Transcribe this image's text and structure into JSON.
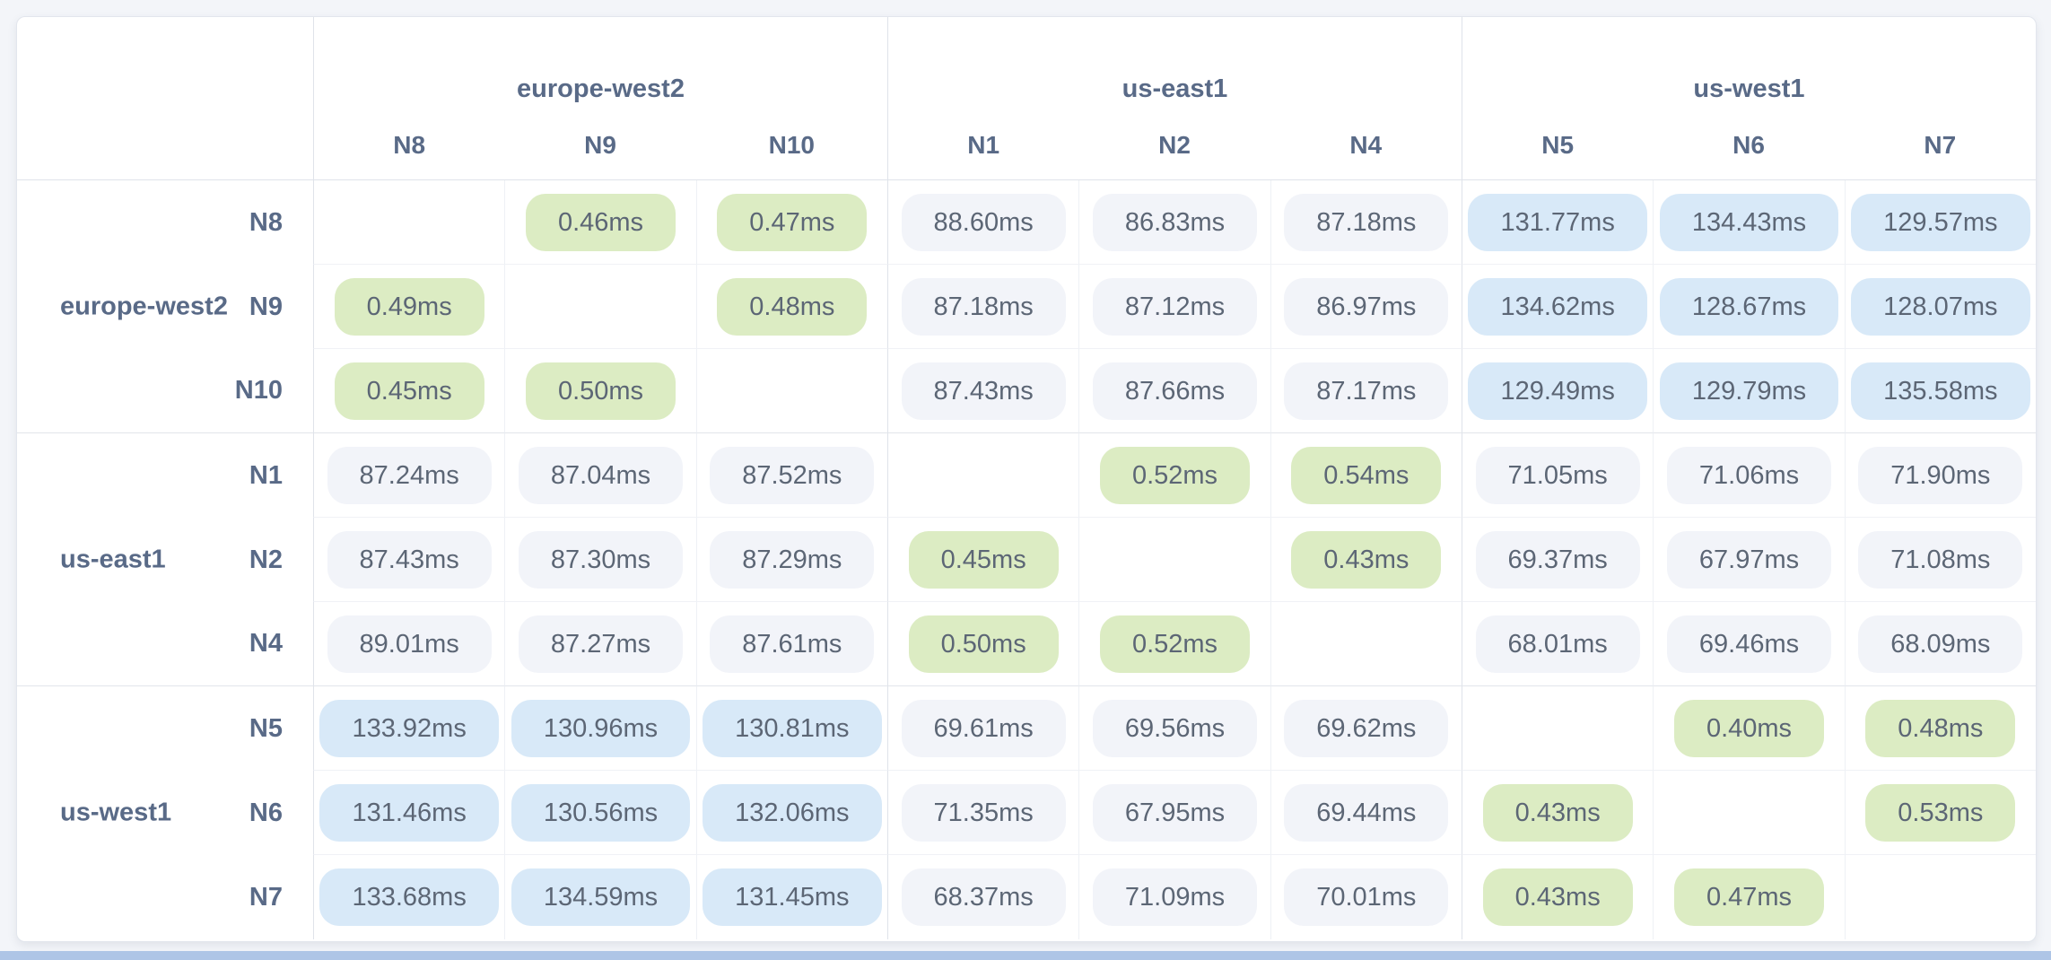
{
  "page": {
    "background_color": "#f3f5f9",
    "bottom_bar_color": "#aec5e6"
  },
  "matrix": {
    "unit": "ms",
    "cell_colors": {
      "low": "#dcecc3",
      "mid": "#f2f4f9",
      "high": "#d8e9f8"
    },
    "thresholds": {
      "low_below_ms": 1,
      "high_above_ms": 120
    },
    "regions": [
      {
        "name": "europe-west2",
        "nodes": [
          "N8",
          "N9",
          "N10"
        ]
      },
      {
        "name": "us-east1",
        "nodes": [
          "N1",
          "N2",
          "N4"
        ]
      },
      {
        "name": "us-west1",
        "nodes": [
          "N5",
          "N6",
          "N7"
        ]
      }
    ],
    "columns": [
      "N8",
      "N9",
      "N10",
      "N1",
      "N2",
      "N4",
      "N5",
      "N6",
      "N7"
    ],
    "rows": [
      {
        "node": "N8",
        "cells": [
          null,
          "0.46ms",
          "0.47ms",
          "88.60ms",
          "86.83ms",
          "87.18ms",
          "131.77ms",
          "134.43ms",
          "129.57ms"
        ]
      },
      {
        "node": "N9",
        "cells": [
          "0.49ms",
          null,
          "0.48ms",
          "87.18ms",
          "87.12ms",
          "86.97ms",
          "134.62ms",
          "128.67ms",
          "128.07ms"
        ]
      },
      {
        "node": "N10",
        "cells": [
          "0.45ms",
          "0.50ms",
          null,
          "87.43ms",
          "87.66ms",
          "87.17ms",
          "129.49ms",
          "129.79ms",
          "135.58ms"
        ]
      },
      {
        "node": "N1",
        "cells": [
          "87.24ms",
          "87.04ms",
          "87.52ms",
          null,
          "0.52ms",
          "0.54ms",
          "71.05ms",
          "71.06ms",
          "71.90ms"
        ]
      },
      {
        "node": "N2",
        "cells": [
          "87.43ms",
          "87.30ms",
          "87.29ms",
          "0.45ms",
          null,
          "0.43ms",
          "69.37ms",
          "67.97ms",
          "71.08ms"
        ]
      },
      {
        "node": "N4",
        "cells": [
          "89.01ms",
          "87.27ms",
          "87.61ms",
          "0.50ms",
          "0.52ms",
          null,
          "68.01ms",
          "69.46ms",
          "68.09ms"
        ]
      },
      {
        "node": "N5",
        "cells": [
          "133.92ms",
          "130.96ms",
          "130.81ms",
          "69.61ms",
          "69.56ms",
          "69.62ms",
          null,
          "0.40ms",
          "0.48ms"
        ]
      },
      {
        "node": "N6",
        "cells": [
          "131.46ms",
          "130.56ms",
          "132.06ms",
          "71.35ms",
          "67.95ms",
          "69.44ms",
          "0.43ms",
          null,
          "0.53ms"
        ]
      },
      {
        "node": "N7",
        "cells": [
          "133.68ms",
          "134.59ms",
          "131.45ms",
          "68.37ms",
          "71.09ms",
          "70.01ms",
          "0.43ms",
          "0.47ms",
          null
        ]
      }
    ]
  }
}
